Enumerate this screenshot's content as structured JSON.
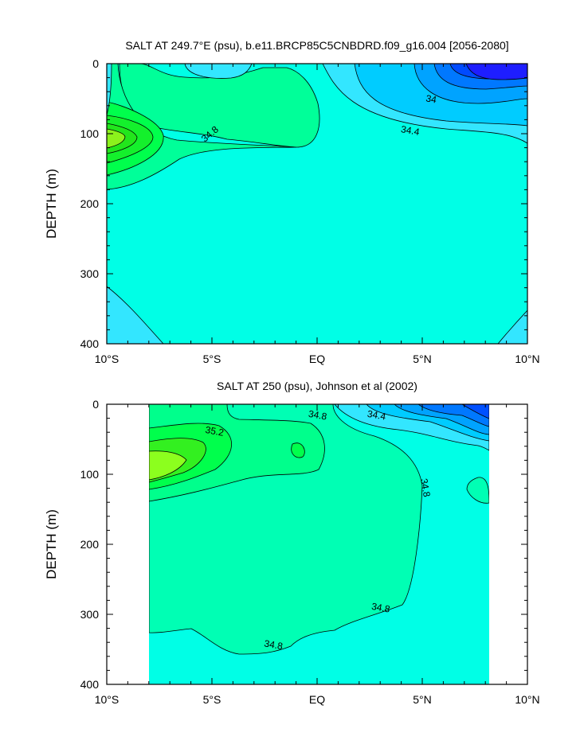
{
  "chart_data": [
    {
      "type": "contour",
      "title": "SALT AT 249.7°E (psu), b.e11.BRCP85C5CNBDRD.f09_g16.004 [2056-2080]",
      "ylabel": "DEPTH (m)",
      "xlim": [
        -10,
        10
      ],
      "ylim": [
        400,
        0
      ],
      "x_ticks": [
        -10,
        -5,
        0,
        5,
        10
      ],
      "x_tick_labels": [
        "10°S",
        "5°S",
        "EQ",
        "5°N",
        "10°N"
      ],
      "y_ticks": [
        0,
        100,
        200,
        300,
        400
      ],
      "y_tick_labels": [
        "0",
        "100",
        "200",
        "300",
        "400"
      ],
      "contour_labels": [
        {
          "text": "34",
          "x": 5.4,
          "y": 55
        },
        {
          "text": "34.4",
          "x": 4.4,
          "y": 100
        },
        {
          "text": "34.8",
          "x": -5.0,
          "y": 104
        }
      ],
      "colors": {
        "background": "#00ffe6",
        "c34_6": "#33e6ff",
        "c34_4": "#00ccff",
        "c34_2": "#00a3ff",
        "c34_0": "#0078ff",
        "c33_8": "#004bff",
        "c33_6": "#1e1eff",
        "c35_0": "#00ff99",
        "c35_2": "#00ff4c",
        "c35_4": "#22f01c"
      }
    },
    {
      "type": "contour",
      "title": "SALT AT 250 (psu), Johnson et al (2002)",
      "ylabel": "DEPTH (m)",
      "xlim": [
        -10,
        10
      ],
      "ylim": [
        400,
        0
      ],
      "data_extent_x": [
        -8.0,
        8.2
      ],
      "x_ticks": [
        -10,
        -5,
        0,
        5,
        10
      ],
      "x_tick_labels": [
        "10°S",
        "5°S",
        "EQ",
        "5°N",
        "10°N"
      ],
      "y_ticks": [
        0,
        100,
        200,
        300,
        400
      ],
      "y_tick_labels": [
        "0",
        "100",
        "200",
        "300",
        "400"
      ],
      "contour_labels": [
        {
          "text": "35.2",
          "x": -4.9,
          "y": 43
        },
        {
          "text": "34.8",
          "x": 0.0,
          "y": 20
        },
        {
          "text": "34.4",
          "x": 2.8,
          "y": 20
        },
        {
          "text": "34.8",
          "x": 5.0,
          "y": 120
        },
        {
          "text": "34.8",
          "x": 3.0,
          "y": 295
        },
        {
          "text": "34.8",
          "x": -2.1,
          "y": 348
        }
      ],
      "colors": {
        "background": "#00ffe6",
        "c34_9": "#00ffb4",
        "c35_0": "#00ff8c",
        "c35_1": "#00ff4c",
        "c35_2": "#33f020",
        "c35_3": "#8cff1e",
        "c34_5": "#33e6ff",
        "c34_3": "#00ccff",
        "c34_1": "#00a3ff",
        "c33_9": "#0078ff",
        "c33_7": "#0050ff"
      }
    }
  ]
}
